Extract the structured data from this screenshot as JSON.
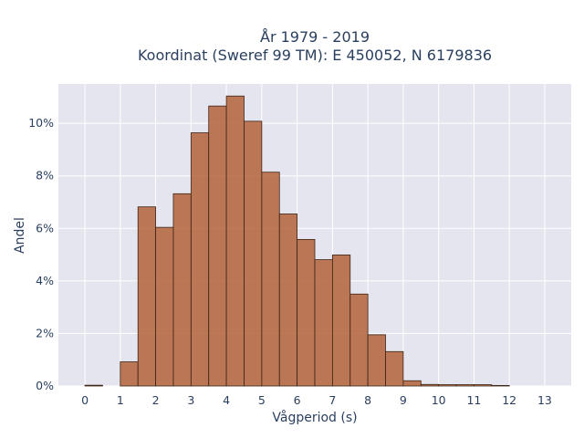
{
  "chart_data": {
    "type": "bar",
    "title_line1": "År 1979 - 2019",
    "title_line2": "Koordinat (Sweref 99 TM): E 450052, N 6179836",
    "xlabel": "Vågperiod (s)",
    "ylabel": "Andel",
    "xlim": [
      -0.75,
      13.75
    ],
    "ylim": [
      0,
      11.5
    ],
    "x_ticks": [
      0,
      1,
      2,
      3,
      4,
      5,
      6,
      7,
      8,
      9,
      10,
      11,
      12,
      13
    ],
    "y_ticks": [
      0,
      2,
      4,
      6,
      8,
      10
    ],
    "y_tick_labels": [
      "0%",
      "2%",
      "4%",
      "6%",
      "8%",
      "10%"
    ],
    "bin_width": 0.5,
    "bin_starts": [
      0,
      0.5,
      1,
      1.5,
      2,
      2.5,
      3,
      3.5,
      4,
      4.5,
      5,
      5.5,
      6,
      6.5,
      7,
      7.5,
      8,
      8.5,
      9,
      9.5,
      10,
      10.5,
      11,
      11.5,
      12
    ],
    "values": [
      0.03,
      0,
      0.92,
      6.82,
      6.04,
      7.32,
      9.64,
      10.66,
      11.04,
      10.08,
      8.14,
      6.55,
      5.58,
      4.81,
      4.99,
      3.5,
      1.95,
      1.31,
      0.2,
      0.06,
      0.05,
      0.05,
      0.05,
      0.02,
      0
    ],
    "colors": {
      "bar": "#b5683f",
      "bar_edge": "#3b2415",
      "plot_bg": "#e5e5f0",
      "grid": "#ffffff",
      "text": "#2a3f5f"
    },
    "grid": true
  }
}
